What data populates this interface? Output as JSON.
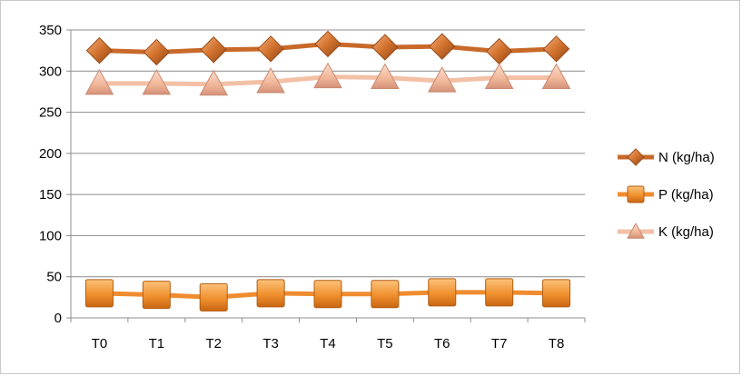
{
  "chart_data": {
    "type": "line",
    "categories": [
      "T0",
      "T1",
      "T2",
      "T3",
      "T4",
      "T5",
      "T6",
      "T7",
      "T8"
    ],
    "series": [
      {
        "name": "N (kg/ha)",
        "values": [
          325,
          323,
          326,
          327,
          333,
          329,
          330,
          324,
          327
        ],
        "color": "#c8692a",
        "marker": "diamond"
      },
      {
        "name": "P (kg/ha)",
        "values": [
          30,
          28,
          25,
          30,
          29,
          29,
          31,
          31,
          30
        ],
        "color": "#f08c30",
        "marker": "square"
      },
      {
        "name": "K (kg/ha)",
        "values": [
          285,
          285,
          284,
          287,
          293,
          292,
          288,
          292,
          292
        ],
        "color": "#f3c0a6",
        "marker": "triangle"
      }
    ],
    "ylim": [
      0,
      350
    ],
    "yticks": [
      0,
      50,
      100,
      150,
      200,
      250,
      300,
      350
    ],
    "grid": true,
    "legend": "right",
    "title": "",
    "xlabel": "",
    "ylabel": ""
  }
}
